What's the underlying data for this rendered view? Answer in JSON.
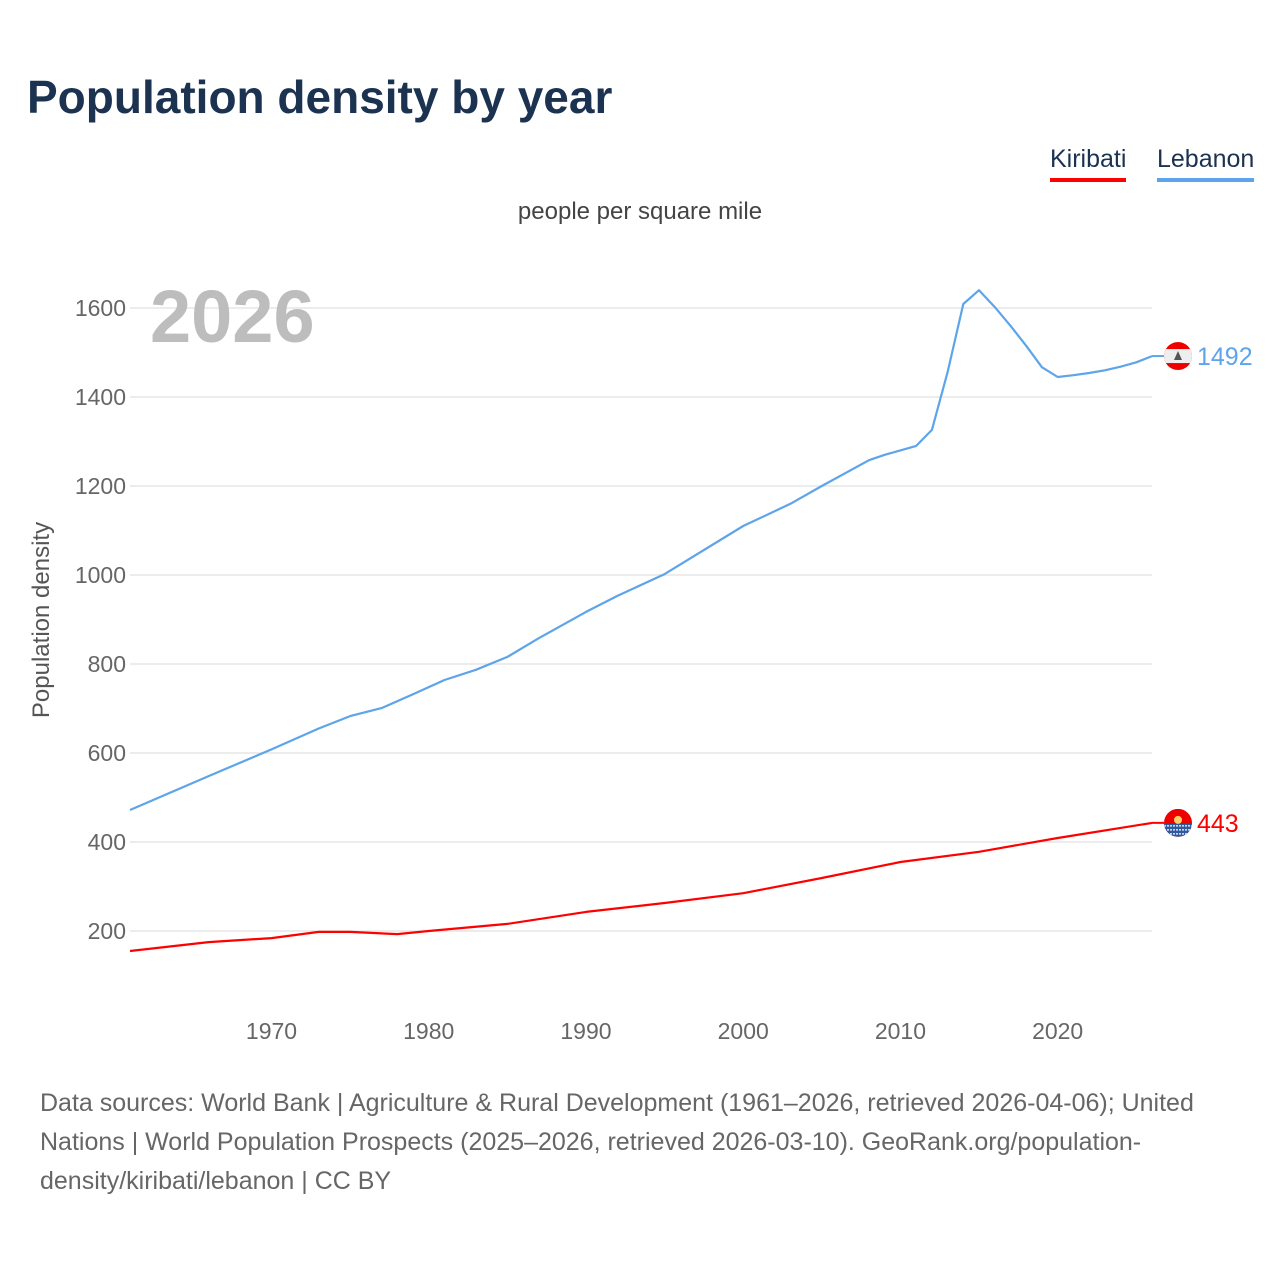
{
  "title": "Population density by year",
  "source": "Data sources: World Bank | Agriculture & Rural Development (1961–2026, retrieved 2026-04-06); United Nations | World Population Prospects (2025–2026, retrieved 2026-03-10). GeoRank.org/population-density/kiribati/lebanon | CC BY",
  "chart_data": {
    "type": "line",
    "title": "Population density by year",
    "subtitle": "people per square mile",
    "xlabel": "",
    "ylabel": "Population density",
    "year_watermark": "2026",
    "xlim": [
      1961,
      2026
    ],
    "ylim": [
      110,
      1700
    ],
    "xticks": [
      1970,
      1980,
      1990,
      2000,
      2010,
      2020
    ],
    "yticks": [
      200,
      400,
      600,
      800,
      1000,
      1200,
      1400,
      1600
    ],
    "grid": true,
    "legend_placement": "top-right",
    "series": [
      {
        "name": "Kiribati",
        "color": "#ff0000",
        "end_label": "443",
        "flag": "kiribati-flag",
        "x": [
          1961,
          1966,
          1970,
          1973,
          1975,
          1978,
          1980,
          1985,
          1990,
          1995,
          2000,
          2005,
          2010,
          2015,
          2020,
          2026
        ],
        "values": [
          155,
          175,
          184,
          198,
          198,
          193,
          200,
          216,
          243,
          263,
          285,
          319,
          355,
          378,
          409,
          443
        ]
      },
      {
        "name": "Lebanon",
        "color": "#5ea4ea",
        "end_label": "1492",
        "flag": "lebanon-flag",
        "x": [
          1961,
          1966,
          1970,
          1973,
          1975,
          1977,
          1979,
          1981,
          1983,
          1985,
          1987,
          1990,
          1992,
          1995,
          2000,
          2003,
          2005,
          2008,
          2009,
          2011,
          2012,
          2013,
          2014,
          2015,
          2016,
          2017,
          2018,
          2019,
          2020,
          2021,
          2022,
          2023,
          2024,
          2025,
          2026
        ],
        "values": [
          472,
          548,
          608,
          655,
          683,
          701,
          732,
          764,
          787,
          816,
          858,
          917,
          953,
          1002,
          1110,
          1160,
          1200,
          1258,
          1270,
          1290,
          1326,
          1456,
          1609,
          1640,
          1602,
          1560,
          1515,
          1467,
          1445,
          1449,
          1454,
          1460,
          1468,
          1478,
          1492
        ]
      }
    ]
  }
}
